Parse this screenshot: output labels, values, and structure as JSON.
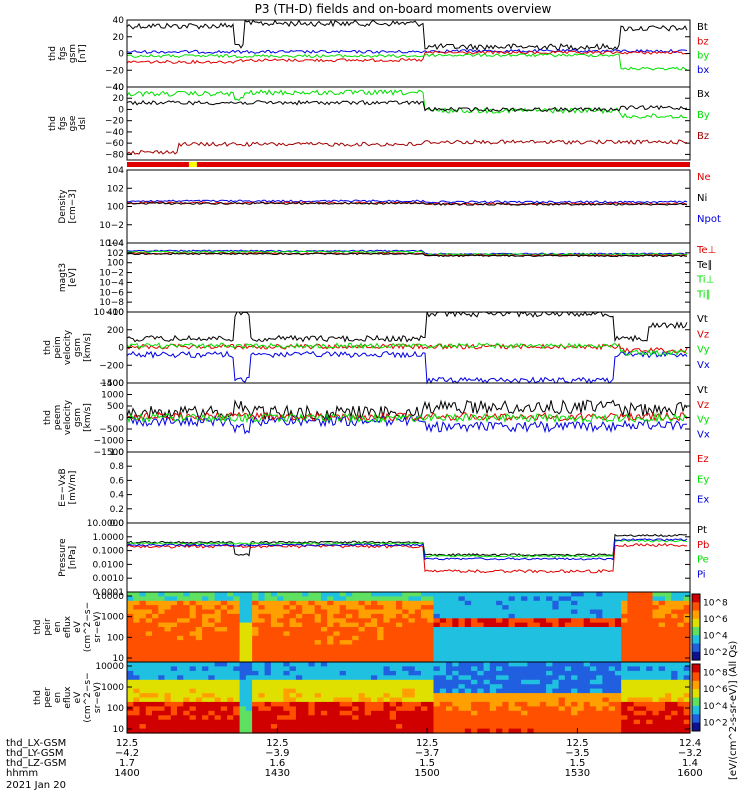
{
  "title": "P3 (TH-D) fields and on-board moments overview",
  "colors": {
    "black": "#000000",
    "red": "#e00000",
    "green": "#00e000",
    "blue": "#0000e0",
    "darkred": "#a00000",
    "yellow": "#ffff00",
    "frame": "#000000"
  },
  "chart_data": [
    {
      "type": "line",
      "panel": "fgs_gsm",
      "ylabel": [
        "thd",
        "fgs",
        "gsm",
        "[nT]"
      ],
      "ylim": [
        -40,
        40
      ],
      "ticks": [
        "40",
        "20",
        "0",
        "−20",
        "−40"
      ],
      "tick_values": [
        40,
        20,
        0,
        -20,
        -40
      ],
      "legend": [
        {
          "label": "Bt",
          "color": "#000000"
        },
        {
          "label": "bz",
          "color": "#e00000"
        },
        {
          "label": "by",
          "color": "#00e000"
        },
        {
          "label": "bx",
          "color": "#0000e0"
        }
      ]
    },
    {
      "type": "line",
      "panel": "fgs_gse",
      "ylabel": [
        "thd",
        "fgs",
        "gse",
        "dsl"
      ],
      "ylim": [
        -90,
        40
      ],
      "ticks": [
        "40",
        "20",
        "0",
        "−20",
        "−40",
        "−60",
        "−80"
      ],
      "tick_values": [
        40,
        20,
        0,
        -20,
        -40,
        -60,
        -80
      ],
      "legend": [
        {
          "label": "Bx",
          "color": "#000000"
        },
        {
          "label": "By",
          "color": "#00e000"
        },
        {
          "label": "Bz",
          "color": "#a00000"
        }
      ]
    },
    {
      "type": "line",
      "panel": "density",
      "ylabel": [
        "Density",
        "[cm−3]"
      ],
      "scale": "log",
      "ylim": [
        -4,
        4
      ],
      "ticks": [
        "10^4",
        "10^2",
        "10^0",
        "10^−2",
        "10^−4"
      ],
      "tick_values": [
        4,
        2,
        0,
        -2,
        -4
      ],
      "legend": [
        {
          "label": "Ne",
          "color": "#e00000"
        },
        {
          "label": "Ni",
          "color": "#000000"
        },
        {
          "label": "Npot",
          "color": "#0000e0"
        }
      ]
    },
    {
      "type": "line",
      "panel": "temperature",
      "ylabel": [
        "magt3",
        "[eV]"
      ],
      "scale": "log",
      "ylim": [
        -10,
        4
      ],
      "ticks": [
        "10^4",
        "10^2",
        "10^0",
        "10^−2",
        "10^−4",
        "10^−6",
        "10^−8",
        "10^−10"
      ],
      "tick_values": [
        4,
        2,
        0,
        -2,
        -4,
        -6,
        -8,
        -10
      ],
      "legend": [
        {
          "label": "Te⊥",
          "color": "#e00000"
        },
        {
          "label": "Te∥",
          "color": "#000000"
        },
        {
          "label": "Ti⊥",
          "color": "#00e000"
        },
        {
          "label": "Ti∥",
          "color": "#00e000"
        }
      ]
    },
    {
      "type": "line",
      "panel": "peim_velocity",
      "ylabel": [
        "thd",
        "peim",
        "velocity",
        "gsm",
        "[km/s]"
      ],
      "ylim": [
        -400,
        400
      ],
      "ticks": [
        "400",
        "200",
        "0",
        "−200",
        "−400"
      ],
      "tick_values": [
        400,
        200,
        0,
        -200,
        -400
      ],
      "legend": [
        {
          "label": "Vt",
          "color": "#000000"
        },
        {
          "label": "Vz",
          "color": "#e00000"
        },
        {
          "label": "Vy",
          "color": "#00e000"
        },
        {
          "label": "Vx",
          "color": "#0000e0"
        }
      ]
    },
    {
      "type": "line",
      "panel": "peem_velocity",
      "ylabel": [
        "thd",
        "peem",
        "velocity",
        "gsm",
        "[km/s]"
      ],
      "ylim": [
        -1500,
        1500
      ],
      "ticks": [
        "1500",
        "1000",
        "500",
        "0",
        "−500",
        "−1000",
        "−1500"
      ],
      "tick_values": [
        1500,
        1000,
        500,
        0,
        -500,
        -1000,
        -1500
      ],
      "legend": [
        {
          "label": "Vt",
          "color": "#000000"
        },
        {
          "label": "Vz",
          "color": "#e00000"
        },
        {
          "label": "Vy",
          "color": "#00e000"
        },
        {
          "label": "Vx",
          "color": "#0000e0"
        }
      ]
    },
    {
      "type": "line",
      "panel": "efield",
      "ylabel": [
        "E=−VxB",
        "[mV/m]"
      ],
      "ylim": [
        0,
        1
      ],
      "ticks": [
        "1.0",
        "0.8",
        "0.6",
        "0.4",
        "0.2",
        "0.0"
      ],
      "tick_values": [
        1.0,
        0.8,
        0.6,
        0.4,
        0.2,
        0.0
      ],
      "legend": [
        {
          "label": "Ez",
          "color": "#e00000"
        },
        {
          "label": "Ey",
          "color": "#00e000"
        },
        {
          "label": "Ex",
          "color": "#0000e0"
        }
      ]
    },
    {
      "type": "line",
      "panel": "pressure",
      "ylabel": [
        "Pressure",
        "[nPa]"
      ],
      "scale": "log",
      "ylim": [
        -4,
        1
      ],
      "ticks": [
        "10.0000",
        "1.0000",
        "0.1000",
        "0.0100",
        "0.0010",
        "0.0001"
      ],
      "tick_values": [
        1,
        0,
        -1,
        -2,
        -3,
        -4
      ],
      "legend": [
        {
          "label": "Pt",
          "color": "#000000"
        },
        {
          "label": "Pb",
          "color": "#e00000"
        },
        {
          "label": "Pe",
          "color": "#00e000"
        },
        {
          "label": "Pi",
          "color": "#0000e0"
        }
      ]
    },
    {
      "type": "heatmap",
      "panel": "peir_spectrogram",
      "ylabel": [
        "thd",
        "peir",
        "en",
        "eflux",
        "eV",
        "(cm^2−s−",
        "sr−eV)"
      ],
      "ylim": [
        10,
        10000
      ],
      "ticks": [
        "10000",
        "1000",
        "100",
        "10"
      ],
      "colorbar": {
        "label": "eV/(cm^2−s−sr−eV)",
        "ticks": [
          "10^8",
          "10^6",
          "10^4",
          "10^2"
        ]
      }
    },
    {
      "type": "heatmap",
      "panel": "peer_spectrogram",
      "ylabel": [
        "thd",
        "peer",
        "en",
        "eflux",
        "eV",
        "(cm^2−s−",
        "sr−eV)"
      ],
      "ylim": [
        10,
        10000
      ],
      "ticks": [
        "10000",
        "1000",
        "100",
        "10"
      ],
      "colorbar": {
        "label": "eV/(cm^2−s−sr−eV)",
        "ticks": [
          "10^8",
          "10^6",
          "10^4",
          "10^2"
        ]
      }
    }
  ],
  "colorbar_title": "[eV/(cm^2-s-sr-eV)] (All Qs)",
  "xaxis": {
    "rows": [
      {
        "label": "thd_LX-GSM",
        "values": [
          "12.5",
          "12.5",
          "12.5",
          "12.5",
          "12.4"
        ]
      },
      {
        "label": "thd_LY-GSM",
        "values": [
          "−4.2",
          "−3.9",
          "−3.7",
          "−3.5",
          "−3.2"
        ]
      },
      {
        "label": "thd_LZ-GSM",
        "values": [
          "1.7",
          "1.6",
          "1.5",
          "1.5",
          "1.4"
        ]
      },
      {
        "label": "hhmm",
        "values": [
          "1400",
          "1430",
          "1500",
          "1530",
          "1600"
        ]
      }
    ],
    "date": "2021 Jan 20"
  }
}
